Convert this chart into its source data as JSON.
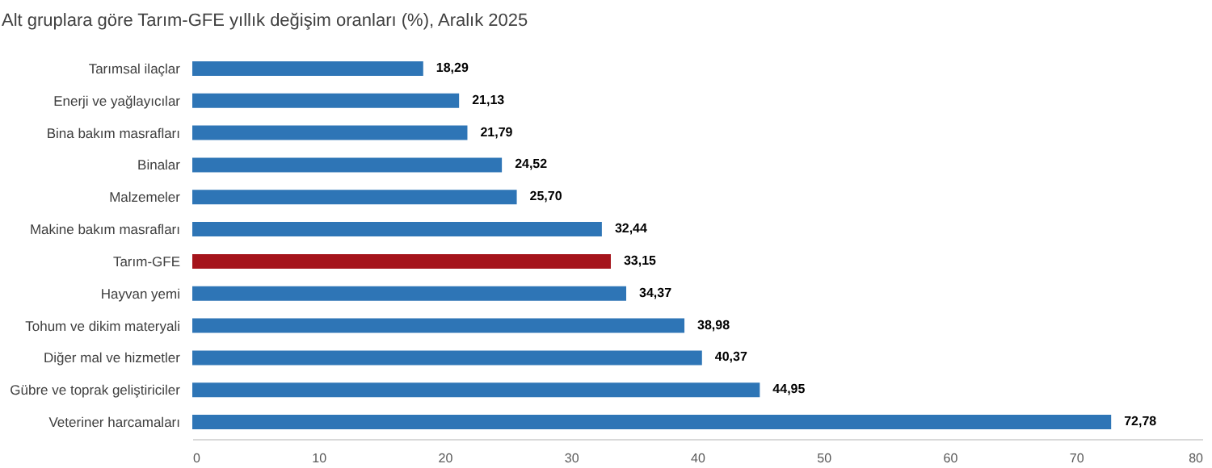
{
  "chart_data": {
    "type": "bar",
    "orientation": "horizontal",
    "title": "Alt gruplara göre Tarım-GFE yıllık değişim oranları (%), Aralık 2025",
    "categories": [
      "Tarımsal ilaçlar",
      "Enerji  ve yağlayıcılar",
      "Bina bakım masrafları",
      "Binalar",
      "Malzemeler",
      "Makine bakım masrafları",
      "Tarım-GFE",
      "Hayvan yemi",
      "Tohum ve dikim materyali",
      "Diğer mal ve hizmetler",
      "Gübre ve toprak geliştiriciler",
      "Veteriner harcamaları"
    ],
    "values": [
      18.29,
      21.13,
      21.79,
      24.52,
      25.7,
      32.44,
      33.15,
      34.37,
      38.98,
      40.37,
      44.95,
      72.78
    ],
    "value_labels": [
      "18,29",
      "21,13",
      "21,79",
      "24,52",
      "25,70",
      "32,44",
      "33,15",
      "34,37",
      "38,98",
      "40,37",
      "44,95",
      "72,78"
    ],
    "colors": [
      "#2e75b6",
      "#2e75b6",
      "#2e75b6",
      "#2e75b6",
      "#2e75b6",
      "#2e75b6",
      "#a5141b",
      "#2e75b6",
      "#2e75b6",
      "#2e75b6",
      "#2e75b6",
      "#2e75b6"
    ],
    "xlim": [
      0,
      80
    ],
    "xticks": [
      0,
      10,
      20,
      30,
      40,
      50,
      60,
      70,
      80
    ],
    "grid": false
  }
}
